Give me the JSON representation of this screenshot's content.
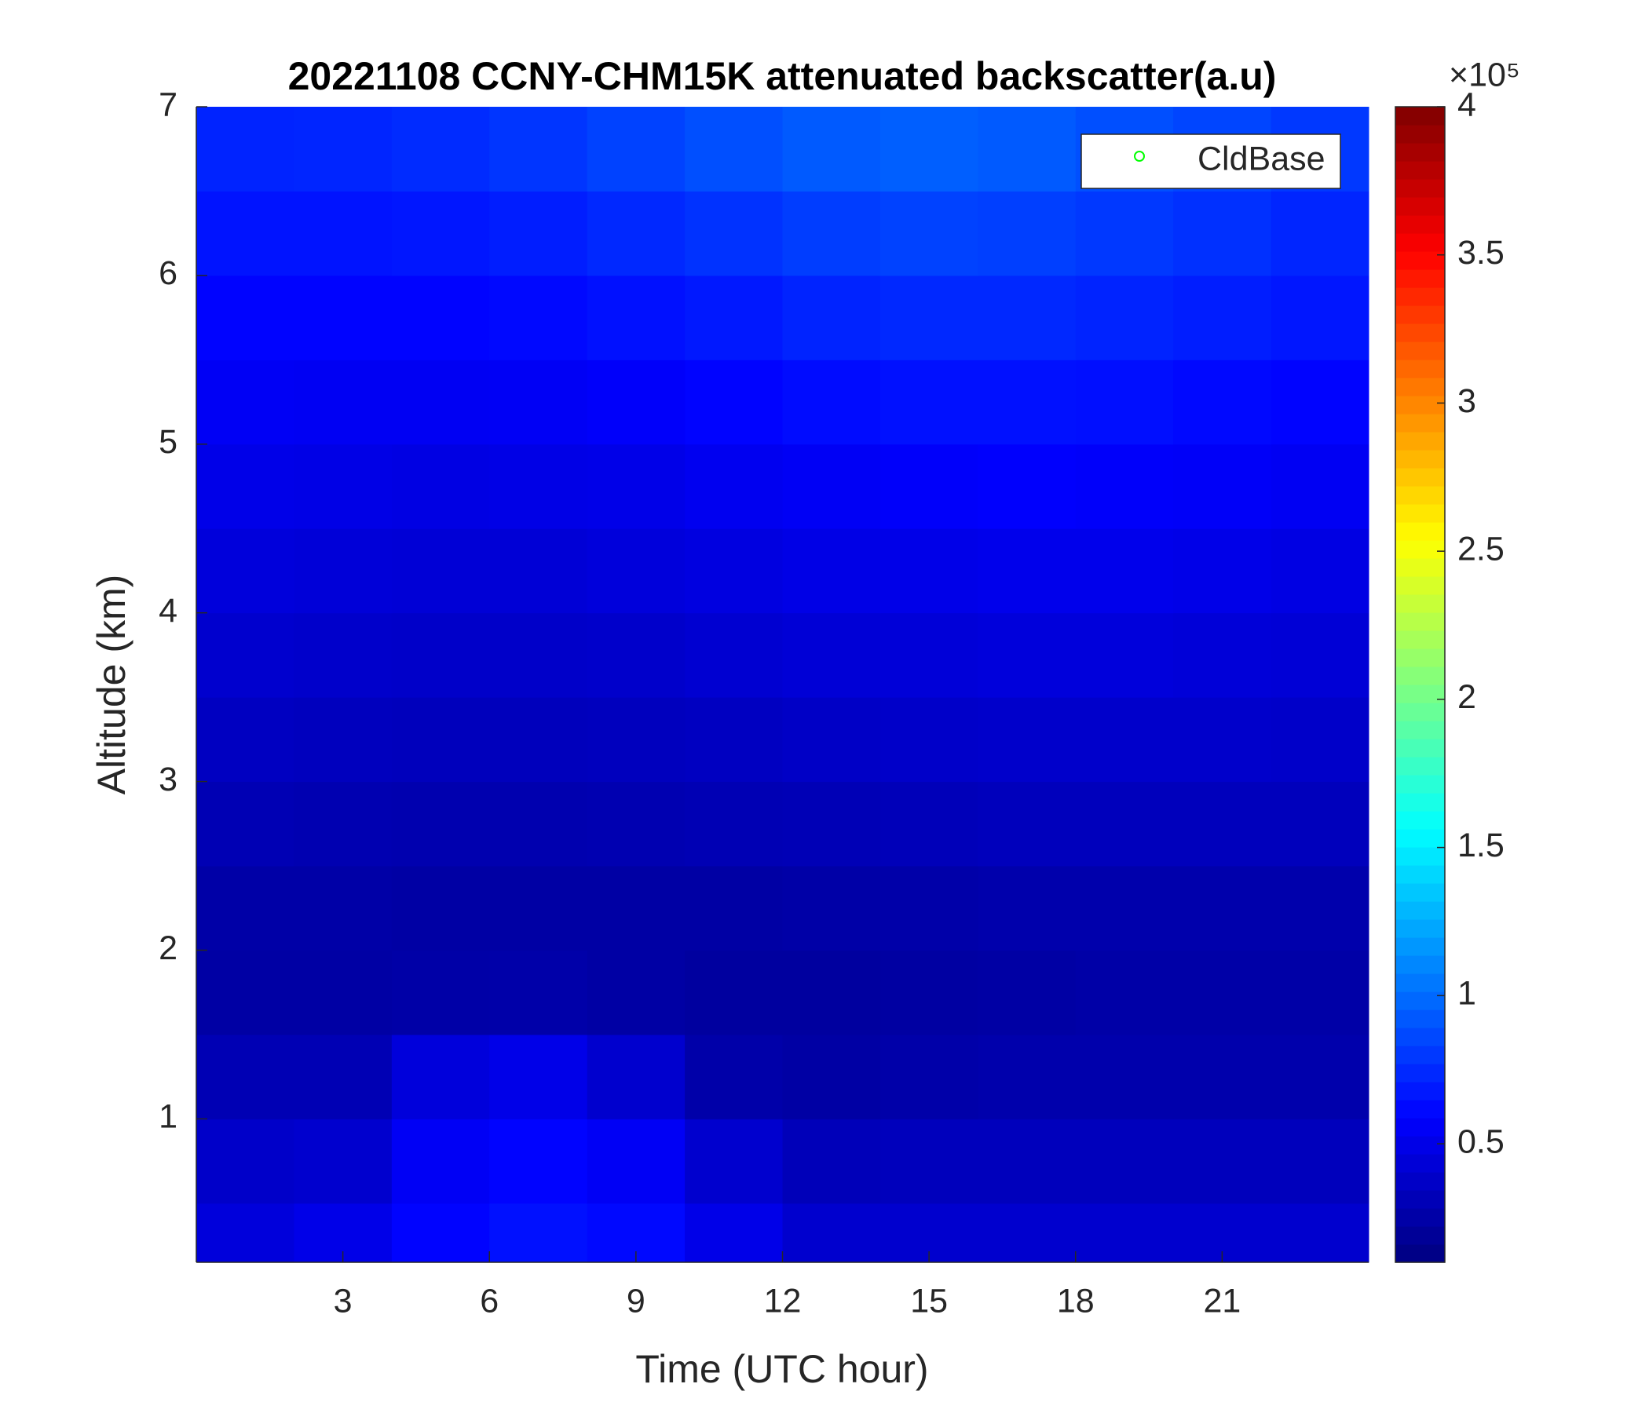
{
  "chart_data": {
    "type": "heatmap",
    "title": "20221108 CCNY-CHM15K attenuated backscatter(a.u)",
    "x_label": "Time (UTC hour)",
    "y_label": "Altitude (km)",
    "xlim": [
      0,
      24
    ],
    "ylim": [
      0.15,
      7
    ],
    "xticks": [
      3,
      6,
      9,
      12,
      15,
      18,
      21
    ],
    "yticks": [
      1,
      2,
      3,
      4,
      5,
      6,
      7
    ],
    "x_edges": [
      0,
      2,
      4,
      6,
      8,
      10,
      12,
      14,
      16,
      18,
      20,
      22,
      24
    ],
    "y_edges": [
      0.15,
      0.5,
      1,
      1.5,
      2,
      2.5,
      3,
      3.5,
      4,
      4.5,
      5,
      5.5,
      6,
      6.5,
      7
    ],
    "z": [
      [
        0.45,
        0.5,
        0.6,
        0.65,
        0.62,
        0.5,
        0.4,
        0.4,
        0.4,
        0.4,
        0.4,
        0.4
      ],
      [
        0.38,
        0.4,
        0.55,
        0.6,
        0.55,
        0.4,
        0.32,
        0.33,
        0.33,
        0.33,
        0.33,
        0.33
      ],
      [
        0.3,
        0.3,
        0.45,
        0.5,
        0.4,
        0.26,
        0.24,
        0.26,
        0.27,
        0.27,
        0.27,
        0.27
      ],
      [
        0.24,
        0.24,
        0.25,
        0.26,
        0.24,
        0.22,
        0.22,
        0.23,
        0.24,
        0.25,
        0.25,
        0.25
      ],
      [
        0.25,
        0.25,
        0.24,
        0.24,
        0.24,
        0.24,
        0.25,
        0.26,
        0.27,
        0.27,
        0.27,
        0.27
      ],
      [
        0.3,
        0.29,
        0.28,
        0.28,
        0.29,
        0.3,
        0.31,
        0.32,
        0.33,
        0.33,
        0.33,
        0.33
      ],
      [
        0.35,
        0.34,
        0.33,
        0.33,
        0.34,
        0.35,
        0.37,
        0.38,
        0.39,
        0.39,
        0.39,
        0.38
      ],
      [
        0.4,
        0.39,
        0.38,
        0.38,
        0.39,
        0.41,
        0.43,
        0.44,
        0.45,
        0.45,
        0.44,
        0.43
      ],
      [
        0.45,
        0.44,
        0.43,
        0.43,
        0.45,
        0.47,
        0.49,
        0.5,
        0.51,
        0.51,
        0.5,
        0.48
      ],
      [
        0.5,
        0.49,
        0.48,
        0.49,
        0.5,
        0.53,
        0.55,
        0.57,
        0.58,
        0.57,
        0.56,
        0.54
      ],
      [
        0.55,
        0.54,
        0.54,
        0.55,
        0.57,
        0.6,
        0.63,
        0.65,
        0.65,
        0.64,
        0.62,
        0.6
      ],
      [
        0.6,
        0.6,
        0.6,
        0.62,
        0.65,
        0.68,
        0.72,
        0.74,
        0.74,
        0.72,
        0.7,
        0.67
      ],
      [
        0.66,
        0.66,
        0.67,
        0.7,
        0.74,
        0.78,
        0.82,
        0.84,
        0.83,
        0.8,
        0.77,
        0.73
      ],
      [
        0.72,
        0.73,
        0.75,
        0.79,
        0.84,
        0.89,
        0.93,
        0.95,
        0.93,
        0.89,
        0.85,
        0.8
      ]
    ],
    "colormap": "jet",
    "clim": [
      0.1,
      4
    ],
    "colorbar_ticks": [
      0.5,
      1,
      1.5,
      2,
      2.5,
      3,
      3.5,
      4
    ],
    "colorbar_multiplier": "×10⁵",
    "series": [
      {
        "name": "CldBase",
        "color": "#00ff00",
        "marker": "o",
        "x": [],
        "values": []
      }
    ],
    "legend": "upper right"
  }
}
